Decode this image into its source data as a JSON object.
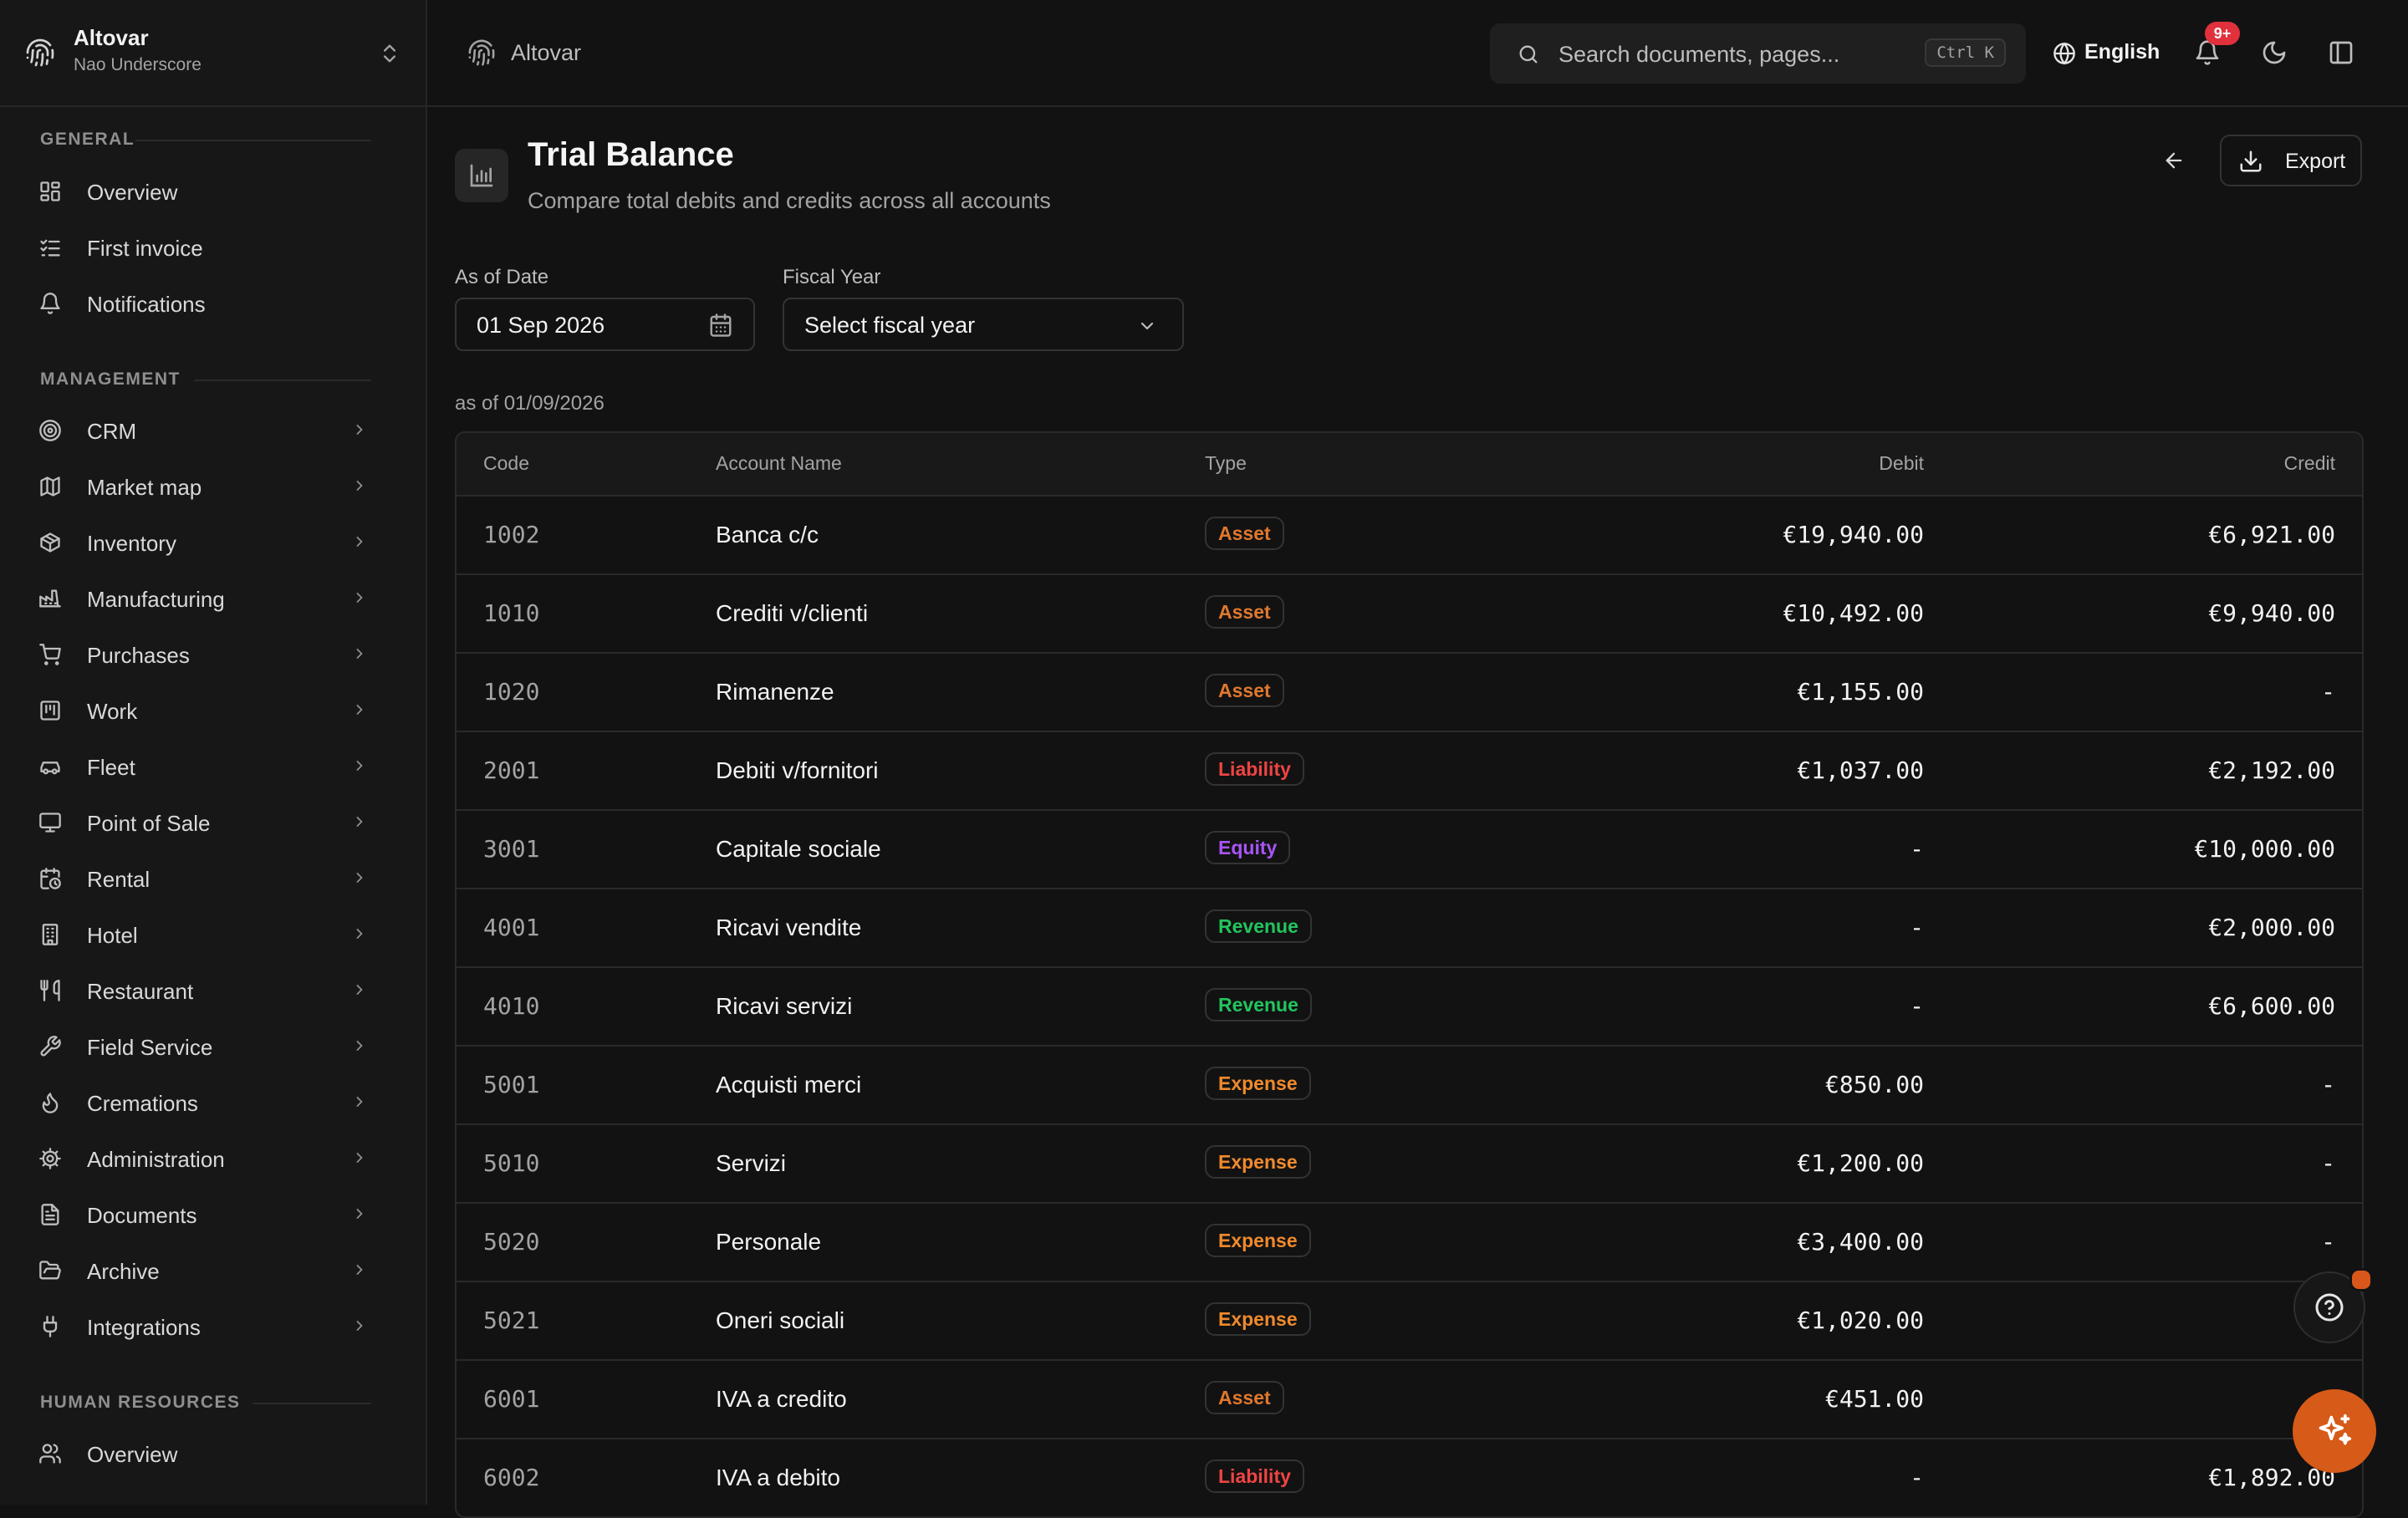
{
  "sidebar": {
    "org_name": "Altovar",
    "org_user": "Nao Underscore",
    "sections": {
      "general": "GENERAL",
      "management": "MANAGEMENT",
      "human_resources": "HUMAN RESOURCES"
    },
    "general_items": [
      {
        "label": "Overview",
        "icon": "dashboard-icon"
      },
      {
        "label": "First invoice",
        "icon": "checklist-icon"
      },
      {
        "label": "Notifications",
        "icon": "bell-icon"
      }
    ],
    "management_items": [
      {
        "label": "CRM",
        "icon": "target-icon"
      },
      {
        "label": "Market map",
        "icon": "map-icon"
      },
      {
        "label": "Inventory",
        "icon": "package-icon"
      },
      {
        "label": "Manufacturing",
        "icon": "factory-icon"
      },
      {
        "label": "Purchases",
        "icon": "cart-icon"
      },
      {
        "label": "Work",
        "icon": "kanban-icon"
      },
      {
        "label": "Fleet",
        "icon": "car-icon"
      },
      {
        "label": "Point of Sale",
        "icon": "monitor-icon"
      },
      {
        "label": "Rental",
        "icon": "calendar-clock-icon"
      },
      {
        "label": "Hotel",
        "icon": "building-icon"
      },
      {
        "label": "Restaurant",
        "icon": "utensils-icon"
      },
      {
        "label": "Field Service",
        "icon": "wrench-icon"
      },
      {
        "label": "Cremations",
        "icon": "flame-icon"
      },
      {
        "label": "Administration",
        "icon": "settings-icon"
      },
      {
        "label": "Documents",
        "icon": "file-icon"
      },
      {
        "label": "Archive",
        "icon": "folder-open-icon"
      },
      {
        "label": "Integrations",
        "icon": "plug-icon"
      }
    ],
    "hr_items": [
      {
        "label": "Overview",
        "icon": "users-icon"
      }
    ]
  },
  "topbar": {
    "app_name": "Altovar",
    "search_placeholder": "Search documents, pages...",
    "search_shortcut": "Ctrl K",
    "language": "English",
    "notifications_badge": "9+"
  },
  "page": {
    "title": "Trial Balance",
    "subtitle": "Compare total debits and credits across all accounts",
    "export_label": "Export",
    "as_of_date_label": "As of Date",
    "as_of_date_value": "01 Sep 2026",
    "fiscal_year_label": "Fiscal Year",
    "fiscal_year_value": "Select fiscal year",
    "as_of_caption": "as of 01/09/2026"
  },
  "table": {
    "headers": [
      "Code",
      "Account Name",
      "Type",
      "Debit",
      "Credit"
    ],
    "type_colors": {
      "Asset": "#e0782e",
      "Liability": "#ef4444",
      "Equity": "#a855f7",
      "Revenue": "#22c55e",
      "Expense": "#f08a2c"
    },
    "rows": [
      {
        "code": "1002",
        "name": "Banca c/c",
        "type": "Asset",
        "debit": "€19,940.00",
        "credit": "€6,921.00"
      },
      {
        "code": "1010",
        "name": "Crediti v/clienti",
        "type": "Asset",
        "debit": "€10,492.00",
        "credit": "€9,940.00"
      },
      {
        "code": "1020",
        "name": "Rimanenze",
        "type": "Asset",
        "debit": "€1,155.00",
        "credit": "-"
      },
      {
        "code": "2001",
        "name": "Debiti v/fornitori",
        "type": "Liability",
        "debit": "€1,037.00",
        "credit": "€2,192.00"
      },
      {
        "code": "3001",
        "name": "Capitale sociale",
        "type": "Equity",
        "debit": "-",
        "credit": "€10,000.00"
      },
      {
        "code": "4001",
        "name": "Ricavi vendite",
        "type": "Revenue",
        "debit": "-",
        "credit": "€2,000.00"
      },
      {
        "code": "4010",
        "name": "Ricavi servizi",
        "type": "Revenue",
        "debit": "-",
        "credit": "€6,600.00"
      },
      {
        "code": "5001",
        "name": "Acquisti merci",
        "type": "Expense",
        "debit": "€850.00",
        "credit": "-"
      },
      {
        "code": "5010",
        "name": "Servizi",
        "type": "Expense",
        "debit": "€1,200.00",
        "credit": "-"
      },
      {
        "code": "5020",
        "name": "Personale",
        "type": "Expense",
        "debit": "€3,400.00",
        "credit": "-"
      },
      {
        "code": "5021",
        "name": "Oneri sociali",
        "type": "Expense",
        "debit": "€1,020.00",
        "credit": "-"
      },
      {
        "code": "6001",
        "name": "IVA a credito",
        "type": "Asset",
        "debit": "€451.00",
        "credit": "-"
      },
      {
        "code": "6002",
        "name": "IVA a debito",
        "type": "Liability",
        "debit": "-",
        "credit": "€1,892.00"
      }
    ]
  },
  "colors": {
    "accent": "#d65a18",
    "badge": "#e0313c"
  }
}
